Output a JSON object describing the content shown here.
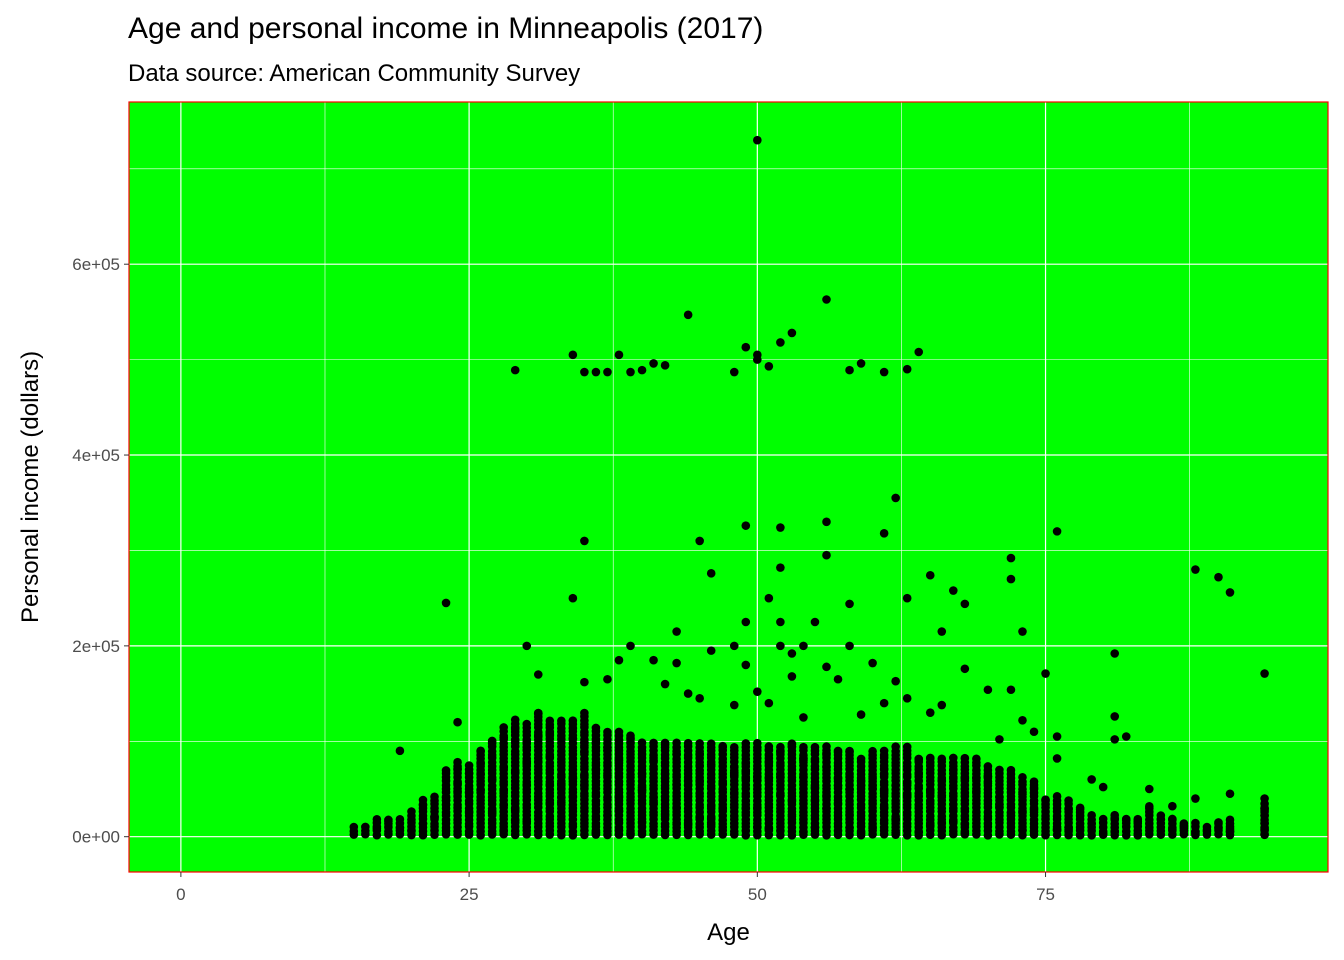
{
  "chart_data": {
    "type": "scatter",
    "title": "Age and personal income in Minneapolis (2017)",
    "subtitle": "Data source: American Community Survey",
    "xlabel": "Age",
    "ylabel": "Personal income (dollars)",
    "xlim": [
      -4.5,
      99.5
    ],
    "ylim": [
      -37000,
      770000
    ],
    "x_ticks": [
      0,
      25,
      50,
      75
    ],
    "y_ticks": [
      0,
      200000,
      400000,
      600000
    ],
    "x_tick_labels": [
      "0",
      "25",
      "50",
      "75"
    ],
    "y_tick_labels": [
      "0e+00",
      "2e+05",
      "4e+05",
      "6e+05"
    ],
    "grid": true,
    "colors": {
      "panel_background": "#00ff00",
      "panel_border": "#ff0000",
      "grid": "#ffffff",
      "points": "#000000"
    },
    "dense_band": {
      "description_values": "per-age columns of points from 0 up to the listed upper value",
      "ages": [
        15,
        16,
        17,
        18,
        19,
        20,
        21,
        22,
        23,
        24,
        25,
        26,
        27,
        28,
        29,
        30,
        31,
        32,
        33,
        34,
        35,
        36,
        37,
        38,
        39,
        40,
        41,
        42,
        43,
        44,
        45,
        46,
        47,
        48,
        49,
        50,
        51,
        52,
        53,
        54,
        55,
        56,
        57,
        58,
        59,
        60,
        61,
        62,
        63,
        64,
        65,
        66,
        67,
        68,
        69,
        70,
        71,
        72,
        73,
        74,
        75,
        76,
        77,
        78,
        79,
        80,
        81,
        82,
        83,
        84,
        85,
        86,
        87,
        88,
        89,
        90,
        91,
        94
      ],
      "upper": [
        10000,
        12000,
        20000,
        18000,
        20000,
        28000,
        38000,
        45000,
        70000,
        80000,
        75000,
        90000,
        100000,
        115000,
        125000,
        120000,
        130000,
        125000,
        125000,
        125000,
        130000,
        115000,
        110000,
        110000,
        105000,
        100000,
        100000,
        100000,
        100000,
        100000,
        100000,
        100000,
        95000,
        95000,
        100000,
        100000,
        95000,
        95000,
        100000,
        95000,
        95000,
        95000,
        90000,
        90000,
        85000,
        90000,
        90000,
        95000,
        95000,
        85000,
        85000,
        85000,
        85000,
        85000,
        80000,
        75000,
        70000,
        70000,
        65000,
        60000,
        40000,
        45000,
        40000,
        30000,
        25000,
        20000,
        25000,
        20000,
        20000,
        30000,
        25000,
        20000,
        15000,
        15000,
        10000,
        15000,
        20000,
        35000
      ]
    },
    "points": [
      {
        "x": 50,
        "y": 730000
      },
      {
        "x": 56,
        "y": 563000
      },
      {
        "x": 44,
        "y": 547000
      },
      {
        "x": 53,
        "y": 528000
      },
      {
        "x": 52,
        "y": 518000
      },
      {
        "x": 49,
        "y": 513000
      },
      {
        "x": 64,
        "y": 508000
      },
      {
        "x": 34,
        "y": 505000
      },
      {
        "x": 38,
        "y": 505000
      },
      {
        "x": 50,
        "y": 505000
      },
      {
        "x": 50,
        "y": 500000
      },
      {
        "x": 51,
        "y": 493000
      },
      {
        "x": 41,
        "y": 496000
      },
      {
        "x": 42,
        "y": 494000
      },
      {
        "x": 59,
        "y": 496000
      },
      {
        "x": 29,
        "y": 489000
      },
      {
        "x": 35,
        "y": 487000
      },
      {
        "x": 36,
        "y": 487000
      },
      {
        "x": 37,
        "y": 487000
      },
      {
        "x": 39,
        "y": 487000
      },
      {
        "x": 40,
        "y": 489000
      },
      {
        "x": 48,
        "y": 487000
      },
      {
        "x": 58,
        "y": 489000
      },
      {
        "x": 61,
        "y": 487000
      },
      {
        "x": 63,
        "y": 490000
      },
      {
        "x": 62,
        "y": 355000
      },
      {
        "x": 49,
        "y": 326000
      },
      {
        "x": 52,
        "y": 324000
      },
      {
        "x": 56,
        "y": 330000
      },
      {
        "x": 61,
        "y": 318000
      },
      {
        "x": 76,
        "y": 320000
      },
      {
        "x": 35,
        "y": 310000
      },
      {
        "x": 45,
        "y": 310000
      },
      {
        "x": 56,
        "y": 295000
      },
      {
        "x": 72,
        "y": 292000
      },
      {
        "x": 52,
        "y": 282000
      },
      {
        "x": 46,
        "y": 276000
      },
      {
        "x": 65,
        "y": 274000
      },
      {
        "x": 88,
        "y": 280000
      },
      {
        "x": 90,
        "y": 272000
      },
      {
        "x": 72,
        "y": 270000
      },
      {
        "x": 67,
        "y": 258000
      },
      {
        "x": 91,
        "y": 256000
      },
      {
        "x": 34,
        "y": 250000
      },
      {
        "x": 51,
        "y": 250000
      },
      {
        "x": 63,
        "y": 250000
      },
      {
        "x": 23,
        "y": 245000
      },
      {
        "x": 58,
        "y": 244000
      },
      {
        "x": 68,
        "y": 244000
      },
      {
        "x": 52,
        "y": 225000
      },
      {
        "x": 49,
        "y": 225000
      },
      {
        "x": 55,
        "y": 225000
      },
      {
        "x": 73,
        "y": 215000
      },
      {
        "x": 66,
        "y": 215000
      },
      {
        "x": 43,
        "y": 215000
      },
      {
        "x": 30,
        "y": 200000
      },
      {
        "x": 39,
        "y": 200000
      },
      {
        "x": 48,
        "y": 200000
      },
      {
        "x": 52,
        "y": 200000
      },
      {
        "x": 54,
        "y": 200000
      },
      {
        "x": 58,
        "y": 200000
      },
      {
        "x": 46,
        "y": 195000
      },
      {
        "x": 53,
        "y": 192000
      },
      {
        "x": 81,
        "y": 192000
      },
      {
        "x": 38,
        "y": 185000
      },
      {
        "x": 41,
        "y": 185000
      },
      {
        "x": 43,
        "y": 182000
      },
      {
        "x": 49,
        "y": 180000
      },
      {
        "x": 56,
        "y": 178000
      },
      {
        "x": 60,
        "y": 182000
      },
      {
        "x": 68,
        "y": 176000
      },
      {
        "x": 75,
        "y": 171000
      },
      {
        "x": 94,
        "y": 171000
      },
      {
        "x": 31,
        "y": 170000
      },
      {
        "x": 37,
        "y": 165000
      },
      {
        "x": 62,
        "y": 163000
      },
      {
        "x": 42,
        "y": 160000
      },
      {
        "x": 35,
        "y": 162000
      },
      {
        "x": 53,
        "y": 168000
      },
      {
        "x": 57,
        "y": 165000
      },
      {
        "x": 70,
        "y": 154000
      },
      {
        "x": 72,
        "y": 154000
      },
      {
        "x": 44,
        "y": 150000
      },
      {
        "x": 50,
        "y": 152000
      },
      {
        "x": 45,
        "y": 145000
      },
      {
        "x": 63,
        "y": 145000
      },
      {
        "x": 48,
        "y": 138000
      },
      {
        "x": 51,
        "y": 140000
      },
      {
        "x": 61,
        "y": 140000
      },
      {
        "x": 66,
        "y": 138000
      },
      {
        "x": 65,
        "y": 130000
      },
      {
        "x": 81,
        "y": 126000
      },
      {
        "x": 73,
        "y": 122000
      },
      {
        "x": 54,
        "y": 125000
      },
      {
        "x": 59,
        "y": 128000
      },
      {
        "x": 24,
        "y": 120000
      },
      {
        "x": 71,
        "y": 102000
      },
      {
        "x": 74,
        "y": 110000
      },
      {
        "x": 76,
        "y": 105000
      },
      {
        "x": 82,
        "y": 105000
      },
      {
        "x": 81,
        "y": 102000
      },
      {
        "x": 19,
        "y": 90000
      },
      {
        "x": 76,
        "y": 82000
      },
      {
        "x": 79,
        "y": 60000
      },
      {
        "x": 80,
        "y": 52000
      },
      {
        "x": 84,
        "y": 50000
      },
      {
        "x": 86,
        "y": 32000
      },
      {
        "x": 88,
        "y": 40000
      },
      {
        "x": 91,
        "y": 45000
      },
      {
        "x": 87,
        "y": 12000
      },
      {
        "x": 77,
        "y": 10000
      },
      {
        "x": 78,
        "y": 2000
      },
      {
        "x": 81,
        "y": 5000
      },
      {
        "x": 83,
        "y": 3000
      },
      {
        "x": 86,
        "y": 8000
      },
      {
        "x": 88,
        "y": 5000
      },
      {
        "x": 89,
        "y": 7000
      },
      {
        "x": 90,
        "y": 15000
      },
      {
        "x": 94,
        "y": 2000
      },
      {
        "x": 94,
        "y": 8000
      },
      {
        "x": 94,
        "y": 14000
      },
      {
        "x": 94,
        "y": 22000
      },
      {
        "x": 94,
        "y": 28000
      },
      {
        "x": 94,
        "y": 40000
      },
      {
        "x": 91,
        "y": 8000
      }
    ]
  }
}
